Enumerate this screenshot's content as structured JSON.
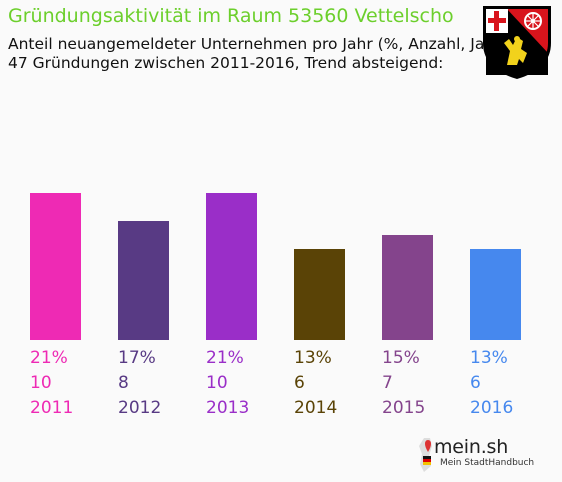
{
  "header": {
    "title": "Gründungsaktivität im Raum 53560 Vettelscho",
    "subtitle_line1": "Anteil neuangemeldeter Unternehmen pro Jahr (%, Anzahl, Jahr)",
    "subtitle_line2": "47 Gründungen zwischen 2011-2016, Trend absteigend:"
  },
  "crest": {
    "icon": "rhineland-palatinate-coat-of-arms-icon"
  },
  "brand": {
    "name": "mein.sh",
    "tagline": "Mein StadtHandbuch",
    "icon": "germany-map-pin-icon"
  },
  "chart_data": {
    "type": "bar",
    "title": "Gründungsaktivität im Raum 53560 Vettelscho",
    "categories": [
      "2011",
      "2012",
      "2013",
      "2014",
      "2015",
      "2016"
    ],
    "values": [
      21,
      17,
      21,
      13,
      15,
      13
    ],
    "counts": [
      10,
      8,
      10,
      6,
      7,
      6
    ],
    "percent_labels": [
      "21%",
      "17%",
      "21%",
      "13%",
      "15%",
      "13%"
    ],
    "count_labels": [
      "10",
      "8",
      "10",
      "6",
      "7",
      "6"
    ],
    "colors": [
      "#ee2ab4",
      "#583a84",
      "#9a2ec8",
      "#5a4306",
      "#84448c",
      "#4688ee"
    ],
    "ylim": [
      0,
      21
    ],
    "grid": false,
    "legend": "none"
  }
}
